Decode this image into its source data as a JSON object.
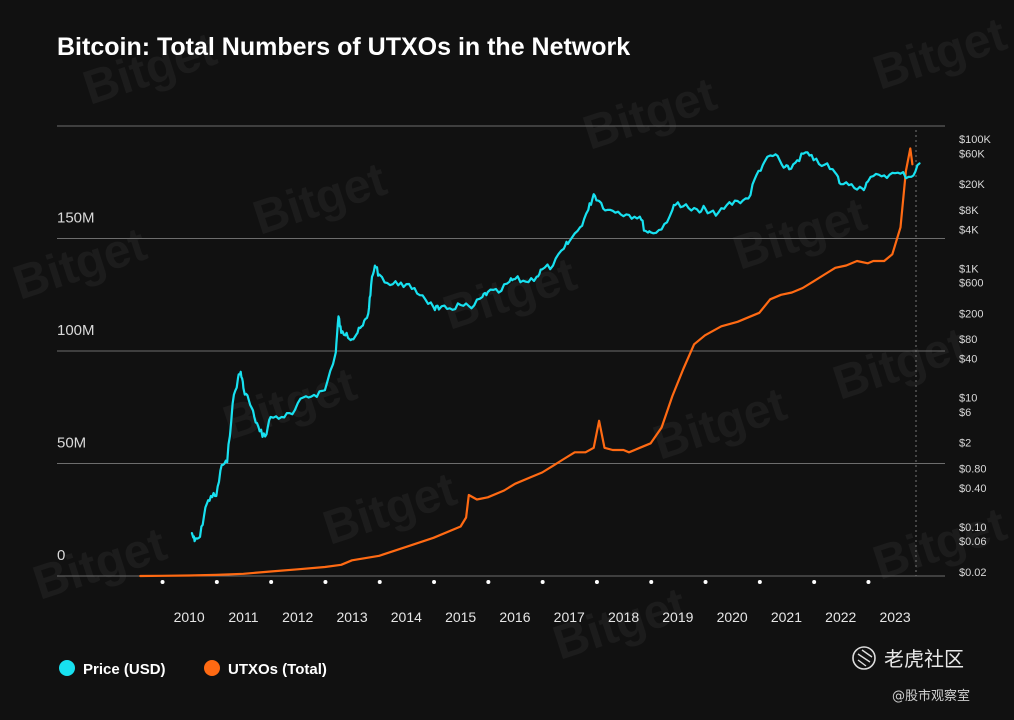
{
  "chart_data": {
    "type": "line",
    "title": "Bitcoin: Total Numbers of UTXOs in the Network",
    "xlabel": "",
    "ylabel_left": "",
    "ylabel_right": "",
    "x_range": [
      2009.6,
      2024.0
    ],
    "x_tick_labels": [
      "2010",
      "2011",
      "2012",
      "2013",
      "2014",
      "2015",
      "2016",
      "2017",
      "2018",
      "2019",
      "2020",
      "2021",
      "2022",
      "2023"
    ],
    "x_tick_values": [
      2010,
      2011,
      2012,
      2013,
      2014,
      2015,
      2016,
      2017,
      2018,
      2019,
      2020,
      2021,
      2022,
      2023
    ],
    "y_left_range": [
      0,
      200000000
    ],
    "y_left_ticks": [
      {
        "value": 0,
        "label": "0"
      },
      {
        "value": 50000000,
        "label": "50M"
      },
      {
        "value": 100000000,
        "label": "100M"
      },
      {
        "value": 150000000,
        "label": "150M"
      }
    ],
    "y_left_gridlines": [
      0,
      50000000,
      100000000,
      150000000,
      200000000
    ],
    "y_right_scale": "log",
    "y_right_range": [
      0.02,
      100000
    ],
    "y_right_ticks": [
      {
        "value": 100000,
        "label": "$100K"
      },
      {
        "value": 60000,
        "label": "$60K"
      },
      {
        "value": 20000,
        "label": "$20K"
      },
      {
        "value": 8000,
        "label": "$8K"
      },
      {
        "value": 4000,
        "label": "$4K"
      },
      {
        "value": 1000,
        "label": "$1K"
      },
      {
        "value": 600,
        "label": "$600"
      },
      {
        "value": 200,
        "label": "$200"
      },
      {
        "value": 80,
        "label": "$80"
      },
      {
        "value": 40,
        "label": "$40"
      },
      {
        "value": 10,
        "label": "$10"
      },
      {
        "value": 6,
        "label": "$6"
      },
      {
        "value": 2,
        "label": "$2"
      },
      {
        "value": 0.8,
        "label": "$0.80"
      },
      {
        "value": 0.4,
        "label": "$0.40"
      },
      {
        "value": 0.1,
        "label": "$0.10"
      },
      {
        "value": 0.06,
        "label": "$0.06"
      },
      {
        "value": 0.02,
        "label": "$0.02"
      }
    ],
    "legend_position": "bottom-left",
    "grid": true,
    "series": [
      {
        "name": "Price (USD)",
        "color": "#18e1f0",
        "axis": "right",
        "x": [
          2010.55,
          2010.6,
          2010.7,
          2010.8,
          2010.9,
          2011.0,
          2011.1,
          2011.2,
          2011.3,
          2011.4,
          2011.45,
          2011.5,
          2011.6,
          2011.7,
          2011.8,
          2011.9,
          2012.0,
          2012.2,
          2012.4,
          2012.6,
          2012.8,
          2013.0,
          2013.2,
          2013.25,
          2013.3,
          2013.4,
          2013.5,
          2013.6,
          2013.7,
          2013.8,
          2013.85,
          2013.92,
          2014.0,
          2014.2,
          2014.4,
          2014.6,
          2014.8,
          2015.0,
          2015.1,
          2015.3,
          2015.5,
          2015.7,
          2015.9,
          2016.0,
          2016.2,
          2016.4,
          2016.5,
          2016.7,
          2016.9,
          2017.0,
          2017.2,
          2017.4,
          2017.5,
          2017.7,
          2017.85,
          2017.95,
          2018.05,
          2018.2,
          2018.4,
          2018.6,
          2018.8,
          2018.9,
          2019.0,
          2019.2,
          2019.4,
          2019.5,
          2019.7,
          2019.9,
          2020.0,
          2020.2,
          2020.4,
          2020.6,
          2020.8,
          2020.95,
          2021.1,
          2021.3,
          2021.45,
          2021.55,
          2021.7,
          2021.85,
          2022.0,
          2022.2,
          2022.4,
          2022.5,
          2022.7,
          2022.9,
          2023.0,
          2023.2,
          2023.4,
          2023.6,
          2023.8,
          2023.95
        ],
        "y": [
          0.08,
          0.06,
          0.07,
          0.2,
          0.3,
          0.3,
          0.9,
          1.0,
          8.0,
          20.0,
          25.0,
          14.0,
          9.0,
          5.0,
          3.0,
          2.5,
          5.0,
          5.0,
          5.5,
          10.0,
          11.0,
          13.0,
          50.0,
          180.0,
          100.0,
          100.0,
          80.0,
          100.0,
          130.0,
          200.0,
          550.0,
          1100.0,
          800.0,
          550.0,
          600.0,
          480.0,
          380.0,
          250.0,
          230.0,
          240.0,
          270.0,
          240.0,
          360.0,
          430.0,
          420.0,
          620.0,
          680.0,
          620.0,
          740.0,
          960.0,
          1100.0,
          2000.0,
          2600.0,
          4300.0,
          8000.0,
          14000.0,
          11000.0,
          8000.0,
          7500.0,
          6700.0,
          6300.0,
          3800.0,
          3600.0,
          4000.0,
          8000.0,
          10500.0,
          8500.0,
          7300.0,
          8500.0,
          6500.0,
          9500.0,
          11000.0,
          12000.0,
          28000.0,
          45000.0,
          58000.0,
          36000.0,
          34000.0,
          47000.0,
          62000.0,
          47000.0,
          40000.0,
          30000.0,
          20000.0,
          20000.0,
          17000.0,
          22000.0,
          28000.0,
          28000.0,
          29000.0,
          26000.0,
          42000.0
        ]
      },
      {
        "name": "UTXOs (Total)",
        "color": "#ff6a13",
        "axis": "left",
        "x": [
          2009.6,
          2010.0,
          2010.5,
          2011.0,
          2011.5,
          2012.0,
          2012.5,
          2013.0,
          2013.3,
          2013.5,
          2014.0,
          2014.5,
          2015.0,
          2015.5,
          2015.6,
          2015.65,
          2015.8,
          2016.0,
          2016.3,
          2016.5,
          2016.8,
          2017.0,
          2017.2,
          2017.4,
          2017.6,
          2017.8,
          2017.95,
          2018.05,
          2018.15,
          2018.3,
          2018.5,
          2018.6,
          2018.8,
          2019.0,
          2019.2,
          2019.4,
          2019.6,
          2019.8,
          2020.0,
          2020.3,
          2020.6,
          2020.8,
          2021.0,
          2021.2,
          2021.4,
          2021.6,
          2021.8,
          2022.0,
          2022.2,
          2022.4,
          2022.6,
          2022.8,
          2023.0,
          2023.1,
          2023.2,
          2023.3,
          2023.45,
          2023.6,
          2023.7,
          2023.78,
          2023.82
        ],
        "y": [
          0,
          100000,
          200000,
          500000,
          1000000,
          2000000,
          3000000,
          4000000,
          5000000,
          7000000,
          9000000,
          13000000,
          17000000,
          22000000,
          26000000,
          36000000,
          34000000,
          35000000,
          38000000,
          41000000,
          44000000,
          46000000,
          49000000,
          52000000,
          55000000,
          55000000,
          57000000,
          69000000,
          57000000,
          56000000,
          56000000,
          55000000,
          57000000,
          59000000,
          66000000,
          80000000,
          92000000,
          103000000,
          107000000,
          111000000,
          113000000,
          115000000,
          117000000,
          123000000,
          125000000,
          126000000,
          128000000,
          131000000,
          134000000,
          137000000,
          138000000,
          140000000,
          139000000,
          140000000,
          140000000,
          140000000,
          143000000,
          155000000,
          180000000,
          190000000,
          183000000
        ]
      }
    ]
  },
  "legend": [
    {
      "label": "Price (USD)",
      "color": "#18e1f0"
    },
    {
      "label": "UTXOs (Total)",
      "color": "#ff6a13"
    }
  ],
  "watermark": "Bitget",
  "branding": {
    "community": "老虎社区",
    "handle": "@股市观察室"
  }
}
